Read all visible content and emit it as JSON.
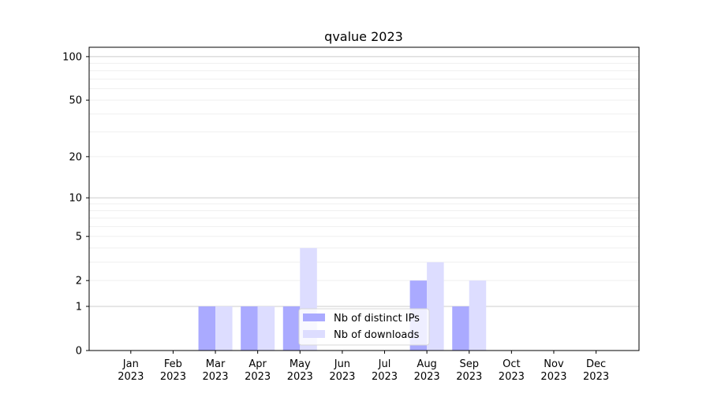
{
  "chart_data": {
    "type": "bar",
    "title": "qvalue 2023",
    "xlabel": "",
    "ylabel": "",
    "yscale": "log(1+y)",
    "ylim": [
      0,
      116
    ],
    "yticks": [
      0,
      1,
      2,
      5,
      10,
      20,
      50,
      100
    ],
    "grid": true,
    "legend_position": "bottom-center",
    "categories": [
      [
        "Jan",
        "2023"
      ],
      [
        "Feb",
        "2023"
      ],
      [
        "Mar",
        "2023"
      ],
      [
        "Apr",
        "2023"
      ],
      [
        "May",
        "2023"
      ],
      [
        "Jun",
        "2023"
      ],
      [
        "Jul",
        "2023"
      ],
      [
        "Aug",
        "2023"
      ],
      [
        "Sep",
        "2023"
      ],
      [
        "Oct",
        "2023"
      ],
      [
        "Nov",
        "2023"
      ],
      [
        "Dec",
        "2023"
      ]
    ],
    "series": [
      {
        "name": "Nb of distinct IPs",
        "color": "#aaaaff",
        "values": [
          0,
          0,
          1,
          1,
          1,
          0,
          0,
          2,
          1,
          0,
          0,
          0
        ]
      },
      {
        "name": "Nb of downloads",
        "color": "#ddddff",
        "values": [
          0,
          0,
          1,
          1,
          4,
          0,
          0,
          3,
          2,
          0,
          0,
          0
        ]
      }
    ]
  }
}
